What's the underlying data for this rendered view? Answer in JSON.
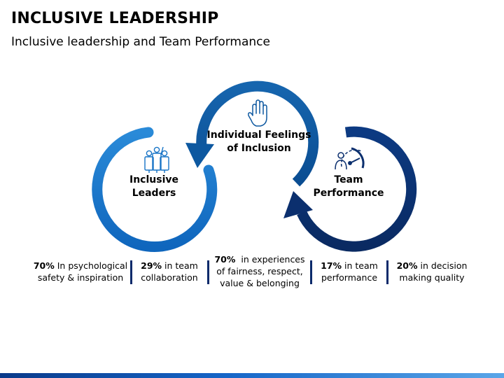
{
  "title": "INCLUSIVE LEADERSHIP",
  "subtitle": "Inclusive leadership and Team Performance",
  "nodes": {
    "leaders": {
      "line1": "Inclusive",
      "line2": "Leaders",
      "color": "#1673c6",
      "icon": "people-group-icon"
    },
    "feelings": {
      "line1": "Individual Feelings",
      "line2": "of Inclusion",
      "color": "#0d58a0",
      "icon": "raised-hand-icon"
    },
    "performance": {
      "line1": "Team",
      "line2": "Performance",
      "color": "#0b2f6e",
      "icon": "performance-gauge-icon"
    }
  },
  "stats": [
    {
      "value": "70%",
      "line1": " In psychological",
      "line2": "safety & inspiration"
    },
    {
      "value": "29%",
      "line1": " in team",
      "line2": "collaboration"
    },
    {
      "value": "70%",
      "line1": "  in experiences",
      "line2": "of fairness, respect,",
      "line3": "value & belonging"
    },
    {
      "value": "17%",
      "line1": " in team",
      "line2": "performance"
    },
    {
      "value": "20%",
      "line1": " in decision",
      "line2": "making quality"
    }
  ]
}
